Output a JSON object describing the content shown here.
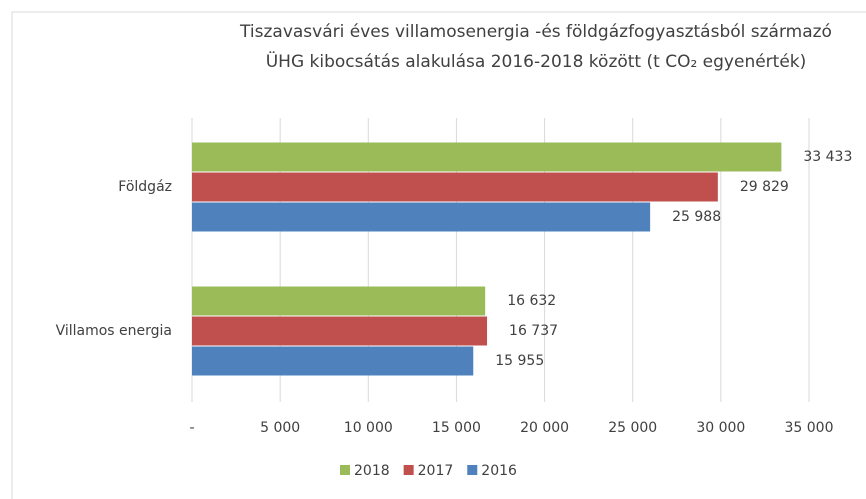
{
  "chart_data": {
    "type": "barh",
    "title": [
      "Tiszavasvári éves villamosenergia -és földgázfogyasztásból származó",
      "ÜHG kibocsátás alakulása 2016-2018 között (t CO₂ egyenérték)"
    ],
    "categories": [
      "Földgáz",
      "Villamos energia"
    ],
    "series": [
      {
        "name": "2018",
        "color": "#9bbb59",
        "values": [
          33433,
          16632
        ],
        "value_labels": [
          "33 433",
          "16 632"
        ]
      },
      {
        "name": "2017",
        "color": "#c0504d",
        "values": [
          29829,
          16737
        ],
        "value_labels": [
          "29 829",
          "16 737"
        ]
      },
      {
        "name": "2016",
        "color": "#4f81bd",
        "values": [
          25988,
          15955
        ],
        "value_labels": [
          "25 988",
          "15 955"
        ]
      }
    ],
    "xlim": [
      0,
      35000
    ],
    "xticks": [
      {
        "value": 0,
        "label": "-"
      },
      {
        "value": 5000,
        "label": "5 000"
      },
      {
        "value": 10000,
        "label": "10 000"
      },
      {
        "value": 15000,
        "label": "15 000"
      },
      {
        "value": 20000,
        "label": "20 000"
      },
      {
        "value": 25000,
        "label": "25 000"
      },
      {
        "value": 30000,
        "label": "30 000"
      },
      {
        "value": 35000,
        "label": "35 000"
      }
    ],
    "grid": true,
    "legend": "bottom"
  }
}
